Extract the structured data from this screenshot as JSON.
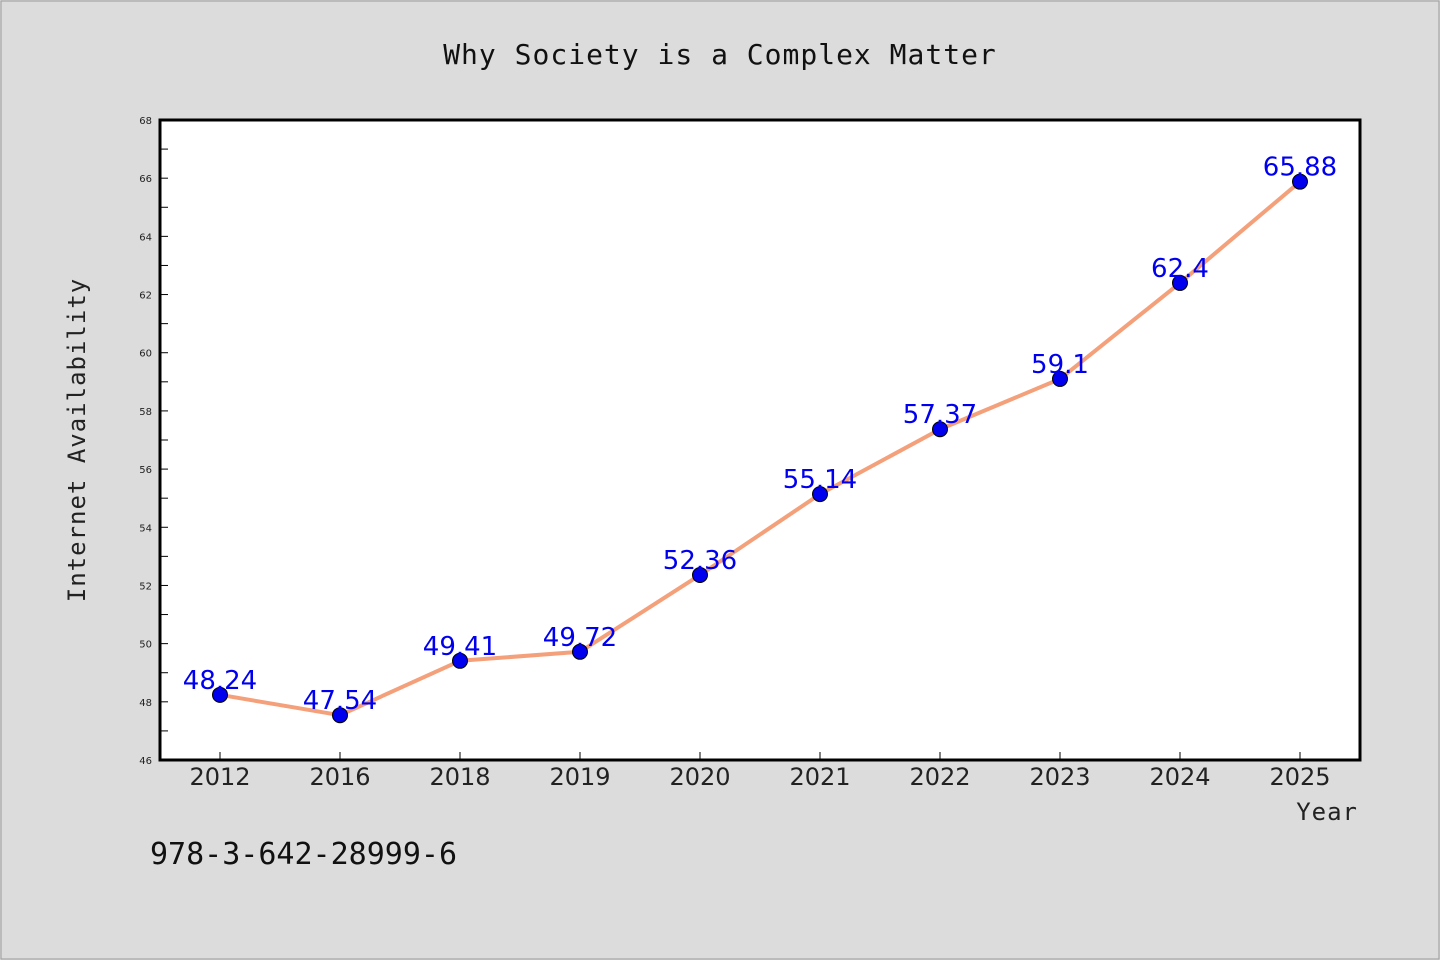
{
  "chart_data": {
    "type": "line",
    "title": "Why Society is a Complex Matter",
    "xlabel": "Year",
    "ylabel": "Internet Availability",
    "categories": [
      "2012",
      "2016",
      "2018",
      "2019",
      "2020",
      "2021",
      "2022",
      "2023",
      "2024",
      "2025"
    ],
    "series": [
      {
        "values": [
          48.24,
          47.54,
          49.41,
          49.72,
          52.36,
          55.14,
          57.37,
          59.1,
          62.4,
          65.88
        ],
        "labels": [
          "48.24",
          "47.54",
          "49.41",
          "49.72",
          "52.36",
          "55.14",
          "57.37",
          "59.1",
          "62.4",
          "65.88"
        ],
        "line_color": "#f4a07a",
        "marker_color": "#0000ee",
        "label_color": "#0000ee"
      }
    ],
    "ylim": [
      46,
      68
    ],
    "yticks": [
      "46",
      "48",
      "50",
      "52",
      "54",
      "56",
      "58",
      "60",
      "62",
      "64",
      "66",
      "68"
    ],
    "grid": false,
    "legend": "none"
  },
  "footer": {
    "text": "978-3-642-28999-6"
  },
  "colors": {
    "background": "#dcdcdc",
    "plot_background": "#ffffff",
    "frame": "#000000"
  }
}
